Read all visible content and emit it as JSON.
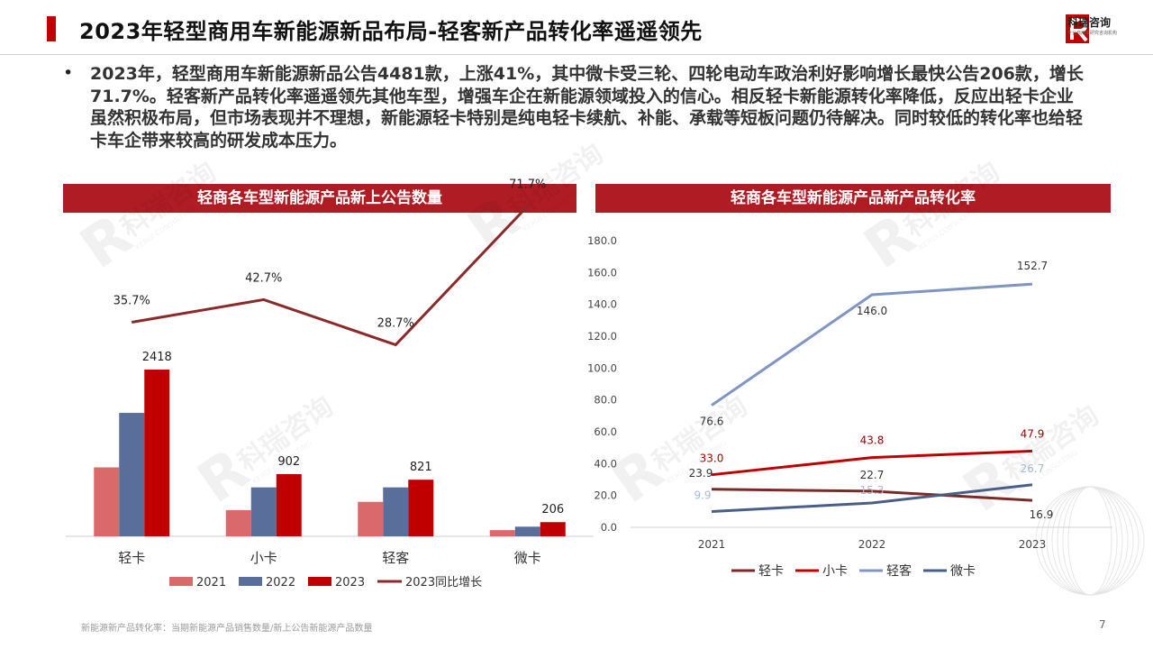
{
  "header": {
    "title": "2023年轻型商用车新能源新品布局-轻客新产品转化率遥遥领先",
    "logo_name": "科瑞咨询",
    "logo_sub": "专业商用车研究咨询机构",
    "watermark": "KERUI CONSULTING"
  },
  "summary": {
    "bullet": "•",
    "text": "2023年，轻型商用车新能源新品公告4481款，上涨41%，其中微卡受三轮、四轮电动车政治利好影响增长最快公告206款，增长71.7%。轻客新产品转化率遥遥领先其他车型，增强车企在新能源领域投入的信心。相反轻卡新能源转化率降低，反应出轻卡企业虽然积极布局，但市场表现并不理想，新能源轻卡特别是纯电轻卡续航、补能、承载等短板问题仍待解决。同时较低的转化率也给轻卡车企带来较高的研发成本压力。"
  },
  "chart_data": [
    {
      "type": "bar",
      "title": "轻商各车型新能源产品新上公告数量",
      "categories": [
        "轻卡",
        "小卡",
        "轻客",
        "微卡"
      ],
      "series": [
        {
          "name": "2021",
          "color": "#d9696b",
          "values": [
            1000,
            380,
            500,
            90
          ]
        },
        {
          "name": "2022",
          "color": "#5a6e9c",
          "values": [
            1790,
            710,
            710,
            140
          ]
        },
        {
          "name": "2023",
          "color": "#c00000",
          "values": [
            2418,
            902,
            821,
            206
          ],
          "labels": [
            "2418",
            "902",
            "821",
            "206"
          ]
        }
      ],
      "line_series": {
        "name": "2023同比增长",
        "color": "#8b2a2a",
        "values": [
          35.7,
          42.7,
          28.7,
          71.7
        ],
        "labels": [
          "35.7%",
          "42.7%",
          "28.7%",
          "71.7%"
        ]
      },
      "bar_max": 3000,
      "line_range": [
        0,
        100
      ]
    },
    {
      "type": "line",
      "title": "轻商各车型新能源产品新产品转化率",
      "x": [
        "2021",
        "2022",
        "2023"
      ],
      "ylim": [
        0,
        180
      ],
      "yticks": [
        "0.0",
        "20.0",
        "40.0",
        "60.0",
        "80.0",
        "100.0",
        "120.0",
        "140.0",
        "160.0",
        "180.0"
      ],
      "series": [
        {
          "name": "轻卡",
          "color": "#7b2a28",
          "values": [
            23.9,
            22.7,
            16.9
          ],
          "labels": [
            "23.9",
            "22.7",
            "16.9"
          ],
          "label_color": "#333333"
        },
        {
          "name": "小卡",
          "color": "#c00000",
          "values": [
            33.0,
            43.8,
            47.9
          ],
          "labels": [
            "33.0",
            "43.8",
            "47.9"
          ],
          "label_color": "#a00000"
        },
        {
          "name": "轻客",
          "color": "#7f97c0",
          "values": [
            76.6,
            146.0,
            152.7
          ],
          "labels": [
            "76.6",
            "146.0",
            "152.7"
          ],
          "label_color": "#333333"
        },
        {
          "name": "微卡",
          "color": "#4a5f88",
          "values": [
            9.9,
            15.3,
            26.7
          ],
          "labels": [
            "9.9",
            "15.3",
            "26.7"
          ],
          "label_color": "#a8b8d4"
        }
      ]
    }
  ],
  "footer": {
    "note": "新能源新产品转化率：当期新能源产品销售数量/新上公告新能源产品数量",
    "page": "7"
  }
}
